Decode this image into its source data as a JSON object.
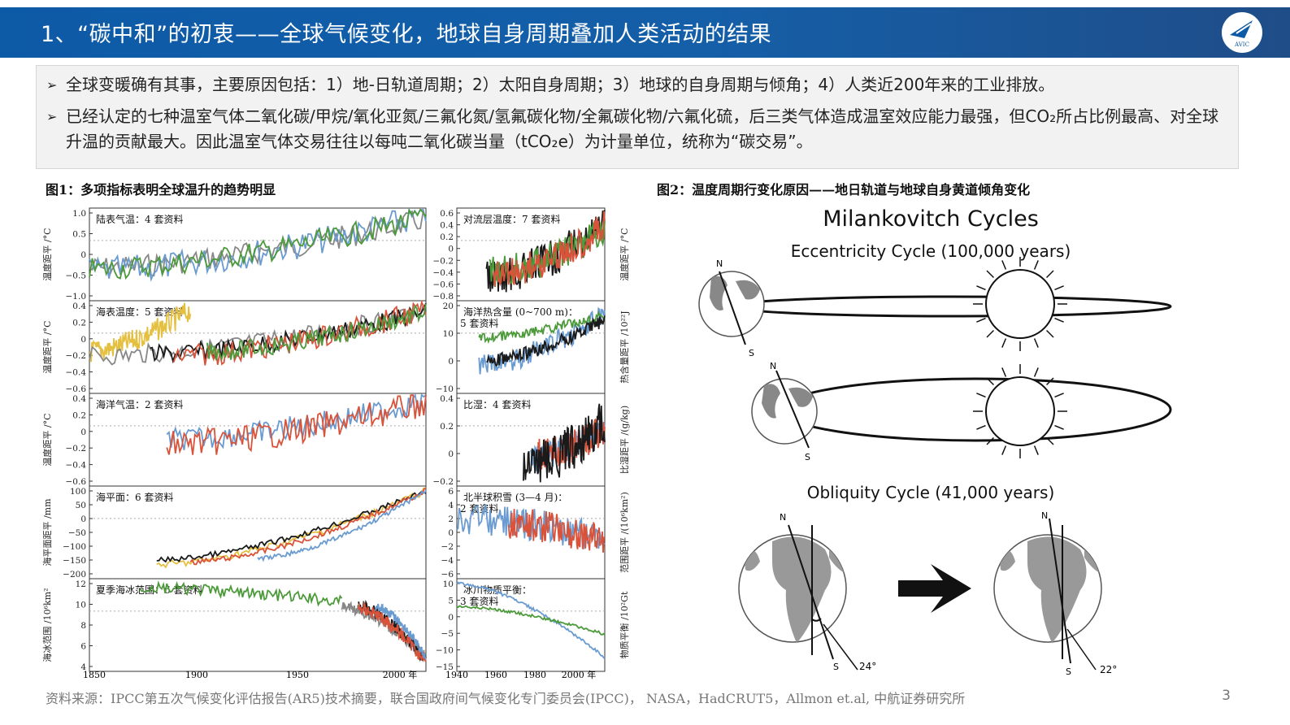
{
  "header": {
    "title": "1、“碳中和”的初衷——全球气候变化，地球自身周期叠加人类活动的结果",
    "logo_text": "AVIC"
  },
  "bullets": [
    {
      "text": "全球变暖确有其事，主要原因包括：1）地-日轨道周期；2）太阳自身周期；3）地球的自身周期与倾角；4）人类近200年来的工业排放。"
    },
    {
      "text": "已经认定的七种温室气体二氧化碳/甲烷/氧化亚氮/三氟化氮/氢氟碳化物/全氟碳化物/六氟化硫，后三类气体造成温室效应能力最强，但CO₂所占比例最高、对全球升温的贡献最大。因此温室气体交易往往以每吨二氧化碳当量（tCO₂e）为计量单位，统称为“碳交易”。"
    }
  ],
  "figure1": {
    "caption": "图1：多项指标表明全球温升的趋势明显",
    "left_x_ticks": [
      "1850",
      "1900",
      "1950",
      "2000 年"
    ],
    "right_x_ticks": [
      "1940",
      "1960",
      "1980",
      "2000 年"
    ],
    "panels_left": [
      {
        "label": "陆表气温：4 套资料",
        "ylabel": "温度距平 /°C",
        "yticks": [
          "1.0",
          "0.5",
          "0",
          "−0.5",
          "−1.0"
        ]
      },
      {
        "label": "海表温度：5 套资料",
        "ylabel": "温度距平 /°C",
        "yticks": [
          "0.4",
          "0.2",
          "0",
          "−0.2",
          "−0.4",
          "−0.6"
        ]
      },
      {
        "label": "海洋气温：2 套资料",
        "ylabel": "温度距平 /°C",
        "yticks": [
          "0.4",
          "0.2",
          "0",
          "−0.2",
          "−0.4",
          "−0.6"
        ]
      },
      {
        "label": "海平面：6 套资料",
        "ylabel": "海平面距平 /mm",
        "yticks": [
          "100",
          "50",
          "0",
          "−50",
          "−100",
          "−150",
          "−200"
        ]
      },
      {
        "label": "夏季海冰范围：6 套资料",
        "ylabel": "海冰范围 /10⁶km²",
        "yticks": [
          "12",
          "10",
          "8",
          "6",
          "4"
        ]
      }
    ],
    "panels_right": [
      {
        "label": "对流层温度：7 套资料",
        "ylabel": "温度距平 /°C",
        "yticks": [
          "0.6",
          "0.4",
          "0.2",
          "0",
          "−0.2",
          "−0.4",
          "−0.6",
          "−0.8"
        ]
      },
      {
        "label": "海洋热含量 (0~700 m)：",
        "label2": "5 套资料",
        "ylabel": "热含量距平 /10²²J",
        "yticks": [
          "20",
          "10",
          "0",
          "−10"
        ]
      },
      {
        "label": "比湿：4 套资料",
        "ylabel": "比湿距平 /(g/kg)",
        "yticks": [
          "0.4",
          "0.2",
          "0",
          "−0.2"
        ]
      },
      {
        "label": "北半球积雪 (3—4 月)：",
        "label2": "2 套资料",
        "ylabel": "范围距平 /(10⁶km²)",
        "yticks": [
          "6",
          "4",
          "2",
          "0",
          "−2",
          "−4",
          "−6"
        ]
      },
      {
        "label": "冰川物质平衡：",
        "label2": "3 套资料",
        "ylabel": "物质平衡 /10²Gt",
        "yticks": [
          "10",
          "5",
          "0",
          "−5",
          "−10",
          "−15"
        ]
      }
    ]
  },
  "figure2": {
    "caption": "图2：温度周期行变化原因——地日轨道与地球自身黄道倾角变化",
    "title": "Milankovitch Cycles",
    "eccentricity": "Eccentricity Cycle (100,000 years)",
    "obliquity": "Obliquity Cycle (41,000 years)",
    "north": "N",
    "south": "S",
    "angle1": "24°",
    "angle2": "22°"
  },
  "footer": {
    "source": "资料来源：IPCC第五次气候变化评估报告(AR5)技术摘要，联合国政府间气候变化专门委员会(IPCC)， NASA，HadCRUT5，Allmon et.al, 中航证券研究所",
    "page": "3"
  },
  "colors": {
    "blue": "#6a9bd0",
    "red": "#d9533b",
    "green": "#4c9a3a",
    "black": "#1a1a1a",
    "yellow": "#e5c040",
    "gray": "#888888",
    "header": "#0d5aa7"
  }
}
